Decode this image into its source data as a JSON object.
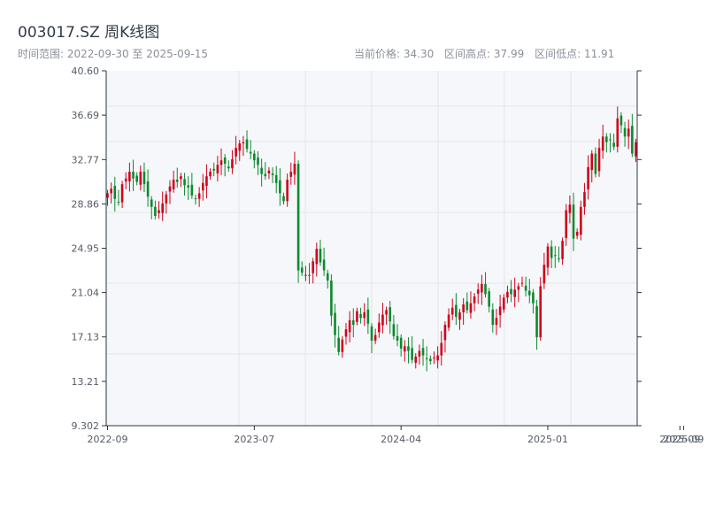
{
  "header": {
    "title": "003017.SZ 周K线图",
    "range_text": "时间范围: 2022-09-30 至 2025-09-15",
    "current_price": "当前价格: 34.30",
    "high": "区间高点: 37.99",
    "low": "区间低点: 11.91"
  },
  "colors": {
    "up": "#d0021b",
    "down": "#0b8a2e",
    "plot_bg": "#f5f7fa",
    "axis": "#2b3440",
    "grid": "#e3e6ea"
  },
  "chart_data": {
    "type": "candlestick",
    "title": "003017.SZ 周K线图",
    "ylim": [
      9.302,
      40.6
    ],
    "y_ticks": [
      "9.302",
      "13.21",
      "17.13",
      "21.04",
      "24.95",
      "28.86",
      "32.77",
      "36.69",
      "40.60"
    ],
    "y_tick_values": [
      9.302,
      13.21,
      17.13,
      21.04,
      24.95,
      28.86,
      32.77,
      36.69,
      40.6
    ],
    "x_ticks": [
      {
        "label": "2022-09",
        "index": 0
      },
      {
        "label": "2023-07",
        "index": 40
      },
      {
        "label": "2024-04",
        "index": 80
      },
      {
        "label": "2025-01",
        "index": 120
      },
      {
        "label": "2025-09",
        "index": 156
      },
      {
        "label": "2025-09",
        "index": 157
      }
    ],
    "grid": true,
    "closes": [
      29.8,
      30.2,
      29.3,
      29.0,
      30.6,
      31.1,
      31.7,
      31.1,
      30.8,
      31.7,
      30.6,
      29.5,
      28.6,
      27.8,
      28.3,
      28.9,
      29.7,
      30.4,
      31.0,
      30.8,
      31.3,
      30.5,
      30.3,
      29.6,
      29.3,
      29.8,
      30.7,
      31.3,
      31.7,
      31.8,
      32.3,
      32.7,
      32.4,
      32.0,
      32.8,
      33.8,
      34.2,
      34.3,
      33.7,
      33.3,
      32.7,
      32.3,
      31.5,
      31.3,
      31.8,
      31.4,
      30.7,
      29.8,
      29.1,
      31.0,
      31.7,
      32.4,
      23.0,
      22.8,
      22.6,
      22.5,
      23.8,
      24.9,
      23.7,
      23.0,
      22.1,
      19.0,
      17.3,
      15.8,
      16.9,
      17.8,
      18.6,
      18.2,
      19.4,
      18.8,
      19.3,
      18.3,
      16.8,
      17.3,
      18.4,
      19.1,
      19.5,
      18.5,
      17.2,
      16.8,
      16.1,
      16.3,
      15.9,
      15.1,
      15.4,
      15.9,
      15.5,
      15.2,
      15.0,
      15.3,
      15.5,
      16.6,
      18.2,
      19.1,
      19.7,
      18.9,
      19.3,
      20.0,
      19.5,
      20.1,
      20.7,
      21.3,
      21.8,
      20.9,
      19.8,
      18.2,
      18.8,
      19.8,
      20.6,
      21.1,
      20.9,
      21.3,
      21.6,
      21.9,
      21.2,
      20.8,
      20.1,
      17.1,
      21.6,
      23.5,
      25.1,
      24.1,
      24.3,
      24.0,
      25.6,
      28.3,
      28.8,
      25.8,
      26.4,
      28.6,
      29.9,
      32.1,
      33.3,
      31.5,
      33.8,
      34.8,
      34.3,
      34.5,
      33.9,
      36.4,
      35.8,
      34.8,
      35.5,
      33.3,
      34.3
    ]
  }
}
